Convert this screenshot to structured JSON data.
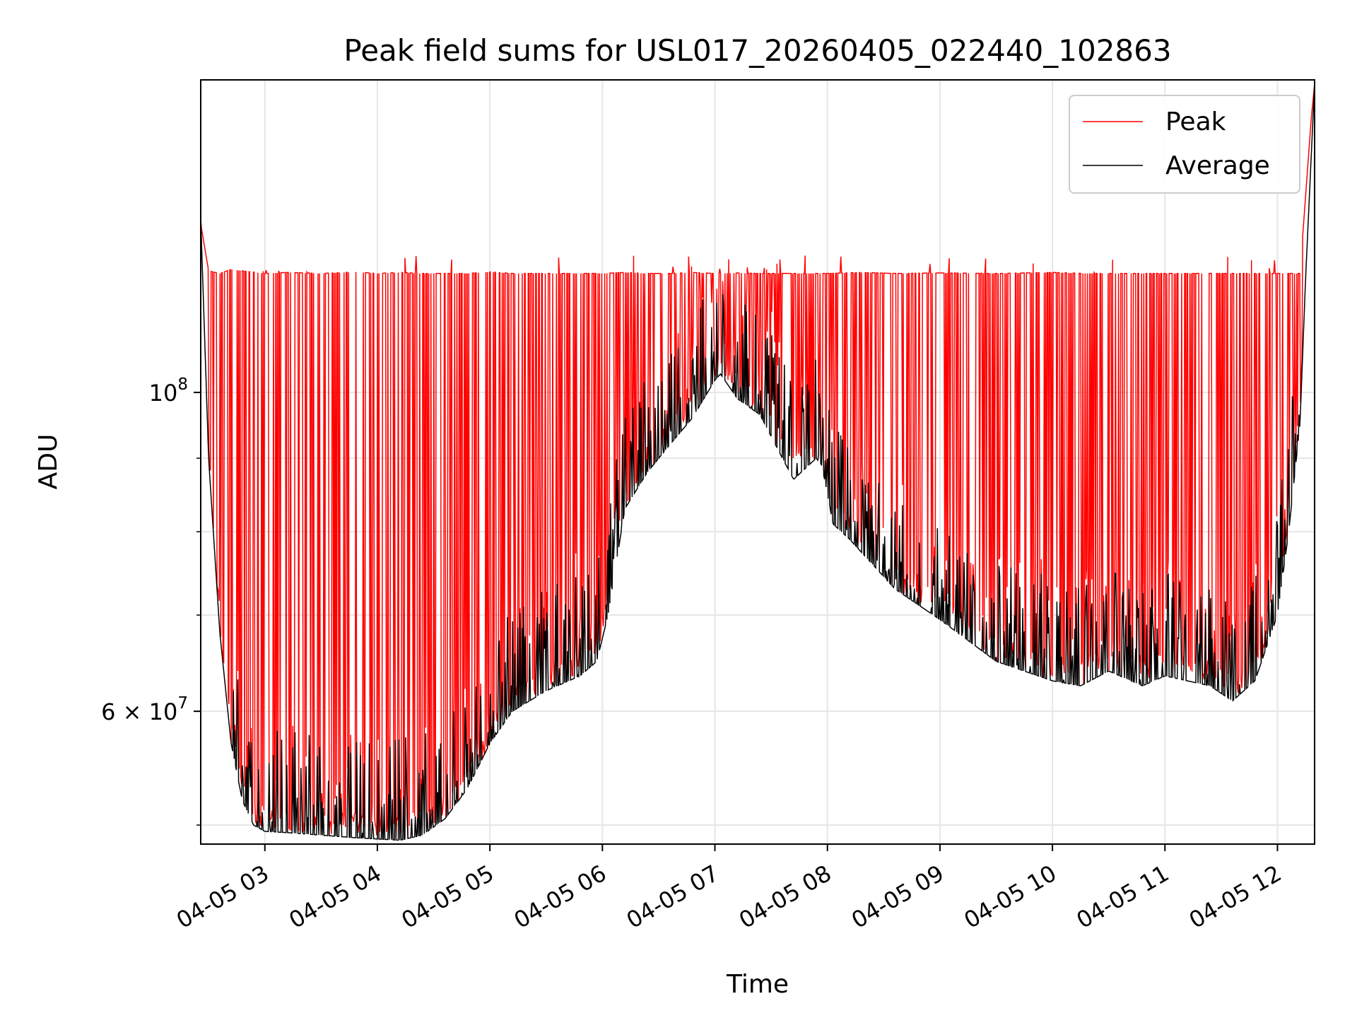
{
  "chart_data": {
    "type": "line",
    "title": "Peak field sums for USL017_20260405_022440_102863",
    "xlabel": "Time",
    "ylabel": "ADU",
    "yscale": "log",
    "grid": true,
    "legend_position": "top-right",
    "x_domain_hours": [
      2.43,
      12.33
    ],
    "ylim": [
      48500000,
      165000000
    ],
    "x_ticks": [
      {
        "value": 3,
        "label": "04-05 03"
      },
      {
        "value": 4,
        "label": "04-05 04"
      },
      {
        "value": 5,
        "label": "04-05 05"
      },
      {
        "value": 6,
        "label": "04-05 06"
      },
      {
        "value": 7,
        "label": "04-05 07"
      },
      {
        "value": 8,
        "label": "04-05 08"
      },
      {
        "value": 9,
        "label": "04-05 09"
      },
      {
        "value": 10,
        "label": "04-05 10"
      },
      {
        "value": 11,
        "label": "04-05 11"
      },
      {
        "value": 12,
        "label": "04-05 12"
      }
    ],
    "y_major_ticks": [
      {
        "value": 60000000,
        "base": "6",
        "exp": "7"
      },
      {
        "value": 100000000,
        "base": "10",
        "exp": "8"
      }
    ],
    "y_minor_ticks": [
      50000000,
      70000000,
      80000000,
      90000000
    ],
    "y_tick_times_symbol": "×",
    "series": [
      {
        "name": "Peak",
        "color": "#ff0000",
        "saturation_level": 121000000,
        "x": [
          2.43,
          2.5,
          2.6,
          2.7,
          2.8,
          3.0,
          3.2,
          3.5,
          3.8,
          4.0,
          4.2,
          4.4,
          4.6,
          4.8,
          5.0,
          5.2,
          5.5,
          5.8,
          6.0,
          6.2,
          6.4,
          6.6,
          6.8,
          7.0,
          7.05,
          7.2,
          7.4,
          7.6,
          7.7,
          7.9,
          8.0,
          8.3,
          8.6,
          9.0,
          9.5,
          10.0,
          10.3,
          10.6,
          11.0,
          11.5,
          11.8,
          12.0,
          12.1,
          12.2,
          12.3,
          12.33
        ],
        "values": [
          131000000,
          121500000,
          121000000,
          121800000,
          121500000,
          121000000,
          121200000,
          121000000,
          121300000,
          121000000,
          121200000,
          121000000,
          121000000,
          121000000,
          121300000,
          121000000,
          121000000,
          121000000,
          121000000,
          121200000,
          121000000,
          121000000,
          121200000,
          121000000,
          121000000,
          121100000,
          121000000,
          121000000,
          121000000,
          121000000,
          121000000,
          121200000,
          121000000,
          121100000,
          121000000,
          121200000,
          121000000,
          121000000,
          121000000,
          121000000,
          121000000,
          121000000,
          121000000,
          121000000,
          155000000,
          164000000
        ]
      },
      {
        "name": "Average",
        "color": "#000000",
        "x": [
          2.43,
          2.5,
          2.6,
          2.7,
          2.8,
          2.9,
          3.0,
          3.2,
          3.5,
          3.8,
          4.0,
          4.2,
          4.4,
          4.6,
          4.8,
          5.0,
          5.2,
          5.5,
          5.8,
          5.95,
          6.05,
          6.2,
          6.4,
          6.6,
          6.8,
          7.0,
          7.05,
          7.2,
          7.4,
          7.6,
          7.7,
          7.9,
          7.95,
          8.05,
          8.2,
          8.6,
          9.0,
          9.5,
          10.0,
          10.25,
          10.5,
          10.8,
          11.0,
          11.4,
          11.6,
          11.8,
          12.0,
          12.1,
          12.2,
          12.25,
          12.33
        ],
        "values": [
          132000000,
          90000000,
          68000000,
          57000000,
          52000000,
          50000000,
          49500000,
          49400000,
          49200000,
          49000000,
          48900000,
          48800000,
          49200000,
          50500000,
          53000000,
          57000000,
          60000000,
          62000000,
          63500000,
          65000000,
          70000000,
          83000000,
          88000000,
          92000000,
          96000000,
          102000000,
          103000000,
          99000000,
          96500000,
          90000000,
          87000000,
          90000000,
          89000000,
          81000000,
          79000000,
          73000000,
          69500000,
          65000000,
          63000000,
          62500000,
          64000000,
          62500000,
          63500000,
          62500000,
          61000000,
          63000000,
          70000000,
          80000000,
          95000000,
          120000000,
          164000000
        ]
      }
    ]
  }
}
